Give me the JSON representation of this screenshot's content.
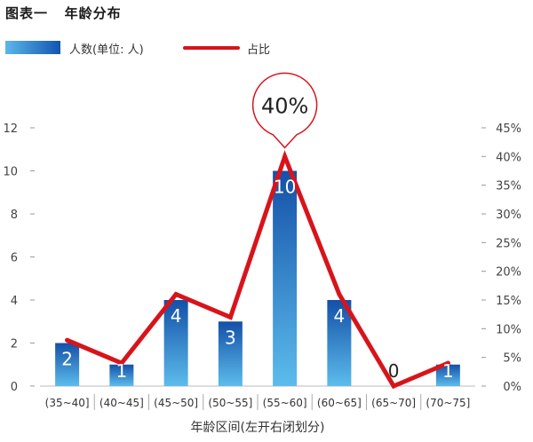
{
  "title": "图表一   年龄分布",
  "chart_data": {
    "type": "bar",
    "categories": [
      "(35~40]",
      "(40~45]",
      "(45~50]",
      "(50~55]",
      "(55~60]",
      "(60~65]",
      "(65~70]",
      "(70~75]"
    ],
    "series": [
      {
        "name": "人数(单位: 人)",
        "type": "bar",
        "axis": "left",
        "values": [
          2,
          1,
          4,
          3,
          10,
          4,
          0,
          1
        ],
        "color": "#1a6cc4"
      },
      {
        "name": "占比",
        "type": "line",
        "axis": "right",
        "values": [
          8,
          4,
          16,
          12,
          40,
          16,
          0,
          4
        ],
        "color": "#d8141b"
      }
    ],
    "xlabel": "年龄区间(左开右闭划分)",
    "ylim_left": [
      0,
      12
    ],
    "yticks_left": [
      "0",
      "2",
      "4",
      "6",
      "8",
      "10",
      "12"
    ],
    "ylim_right": [
      0,
      45
    ],
    "yticks_right": [
      "0%",
      "5%",
      "10%",
      "15%",
      "20%",
      "25%",
      "30%",
      "35%",
      "40%",
      "45%"
    ],
    "annotation": "40%",
    "legend_position": "top-left",
    "grid": false
  }
}
